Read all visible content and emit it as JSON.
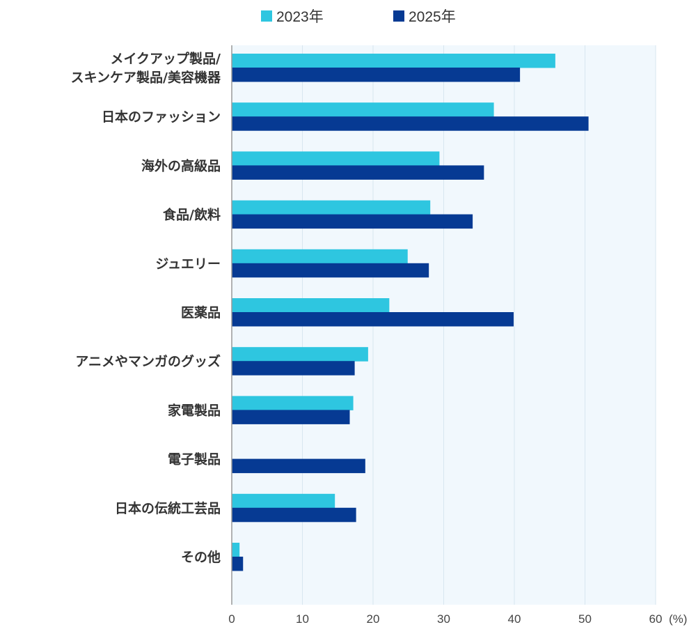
{
  "colors": {
    "series_2023": "#2ec6e0",
    "series_2025": "#063a93",
    "plot_background": "#f1f8fd",
    "gridline": "#d8e6f0",
    "axis": "#999999"
  },
  "chart_data": {
    "type": "bar",
    "orientation": "horizontal",
    "legend": {
      "placement": "top-center",
      "entries": [
        "2023年",
        "2025年"
      ]
    },
    "categories": [
      [
        "メイクアップ製品/",
        "スキンケア製品/美容機器"
      ],
      [
        "日本のファッション"
      ],
      [
        "海外の高級品"
      ],
      [
        "食品/飲料"
      ],
      [
        "ジュエリー"
      ],
      [
        "医薬品"
      ],
      [
        "アニメやマンガのグッズ"
      ],
      [
        "家電製品"
      ],
      [
        "電子製品"
      ],
      [
        "日本の伝統工芸品"
      ],
      [
        "その他"
      ]
    ],
    "series": [
      {
        "name": "2023年",
        "values": [
          45.8,
          37.1,
          29.4,
          28.1,
          24.9,
          22.3,
          19.3,
          17.2,
          null,
          14.6,
          1.1
        ]
      },
      {
        "name": "2025年",
        "values": [
          40.8,
          50.5,
          35.7,
          34.1,
          27.9,
          39.9,
          17.4,
          16.7,
          18.9,
          17.6,
          1.6
        ]
      }
    ],
    "x_ticks": [
      "0",
      "10",
      "20",
      "30",
      "40",
      "50",
      "60"
    ],
    "x_unit": "(%)",
    "xlim": [
      0,
      60
    ],
    "grid": true
  }
}
